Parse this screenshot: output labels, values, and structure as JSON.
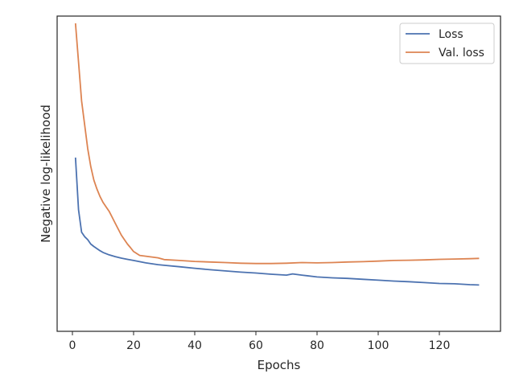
{
  "chart_data": {
    "type": "line",
    "xlabel": "Epochs",
    "ylabel": "Negative log-likelihood",
    "xlim": [
      -5,
      140
    ],
    "ylim": [
      0,
      1
    ],
    "xticks": [
      0,
      20,
      40,
      60,
      80,
      100,
      120
    ],
    "yticks_shown": false,
    "grid": false,
    "legend_position": "top-right",
    "series": [
      {
        "name": "Loss",
        "color": "#4c72b0",
        "x": [
          1,
          2,
          3,
          4,
          5,
          6,
          7,
          8,
          9,
          10,
          12,
          14,
          16,
          18,
          20,
          22,
          24,
          26,
          28,
          30,
          35,
          40,
          45,
          50,
          55,
          60,
          65,
          70,
          72,
          75,
          80,
          85,
          90,
          95,
          100,
          105,
          110,
          115,
          120,
          125,
          130,
          133
        ],
        "y": [
          0.55,
          0.375,
          0.3,
          0.285,
          0.275,
          0.26,
          0.252,
          0.245,
          0.238,
          0.232,
          0.224,
          0.218,
          0.213,
          0.209,
          0.205,
          0.201,
          0.197,
          0.194,
          0.191,
          0.189,
          0.184,
          0.179,
          0.174,
          0.17,
          0.166,
          0.163,
          0.159,
          0.156,
          0.16,
          0.156,
          0.15,
          0.147,
          0.145,
          0.142,
          0.139,
          0.136,
          0.134,
          0.131,
          0.128,
          0.127,
          0.124,
          0.123
        ]
      },
      {
        "name": "Val. loss",
        "color": "#dd8452",
        "x": [
          1,
          2,
          3,
          4,
          5,
          6,
          7,
          8,
          9,
          10,
          11,
          12,
          13,
          14,
          15,
          16,
          17,
          18,
          19,
          20,
          22,
          25,
          28,
          30,
          35,
          40,
          45,
          50,
          55,
          60,
          65,
          70,
          75,
          80,
          85,
          90,
          95,
          100,
          105,
          110,
          115,
          120,
          125,
          130,
          133
        ],
        "y": [
          1.0,
          0.87,
          0.74,
          0.66,
          0.58,
          0.52,
          0.475,
          0.445,
          0.42,
          0.4,
          0.385,
          0.37,
          0.35,
          0.33,
          0.31,
          0.29,
          0.275,
          0.26,
          0.248,
          0.235,
          0.222,
          0.218,
          0.214,
          0.208,
          0.205,
          0.202,
          0.2,
          0.198,
          0.196,
          0.195,
          0.195,
          0.196,
          0.198,
          0.197,
          0.198,
          0.2,
          0.201,
          0.203,
          0.205,
          0.206,
          0.207,
          0.209,
          0.21,
          0.211,
          0.212
        ]
      }
    ]
  }
}
